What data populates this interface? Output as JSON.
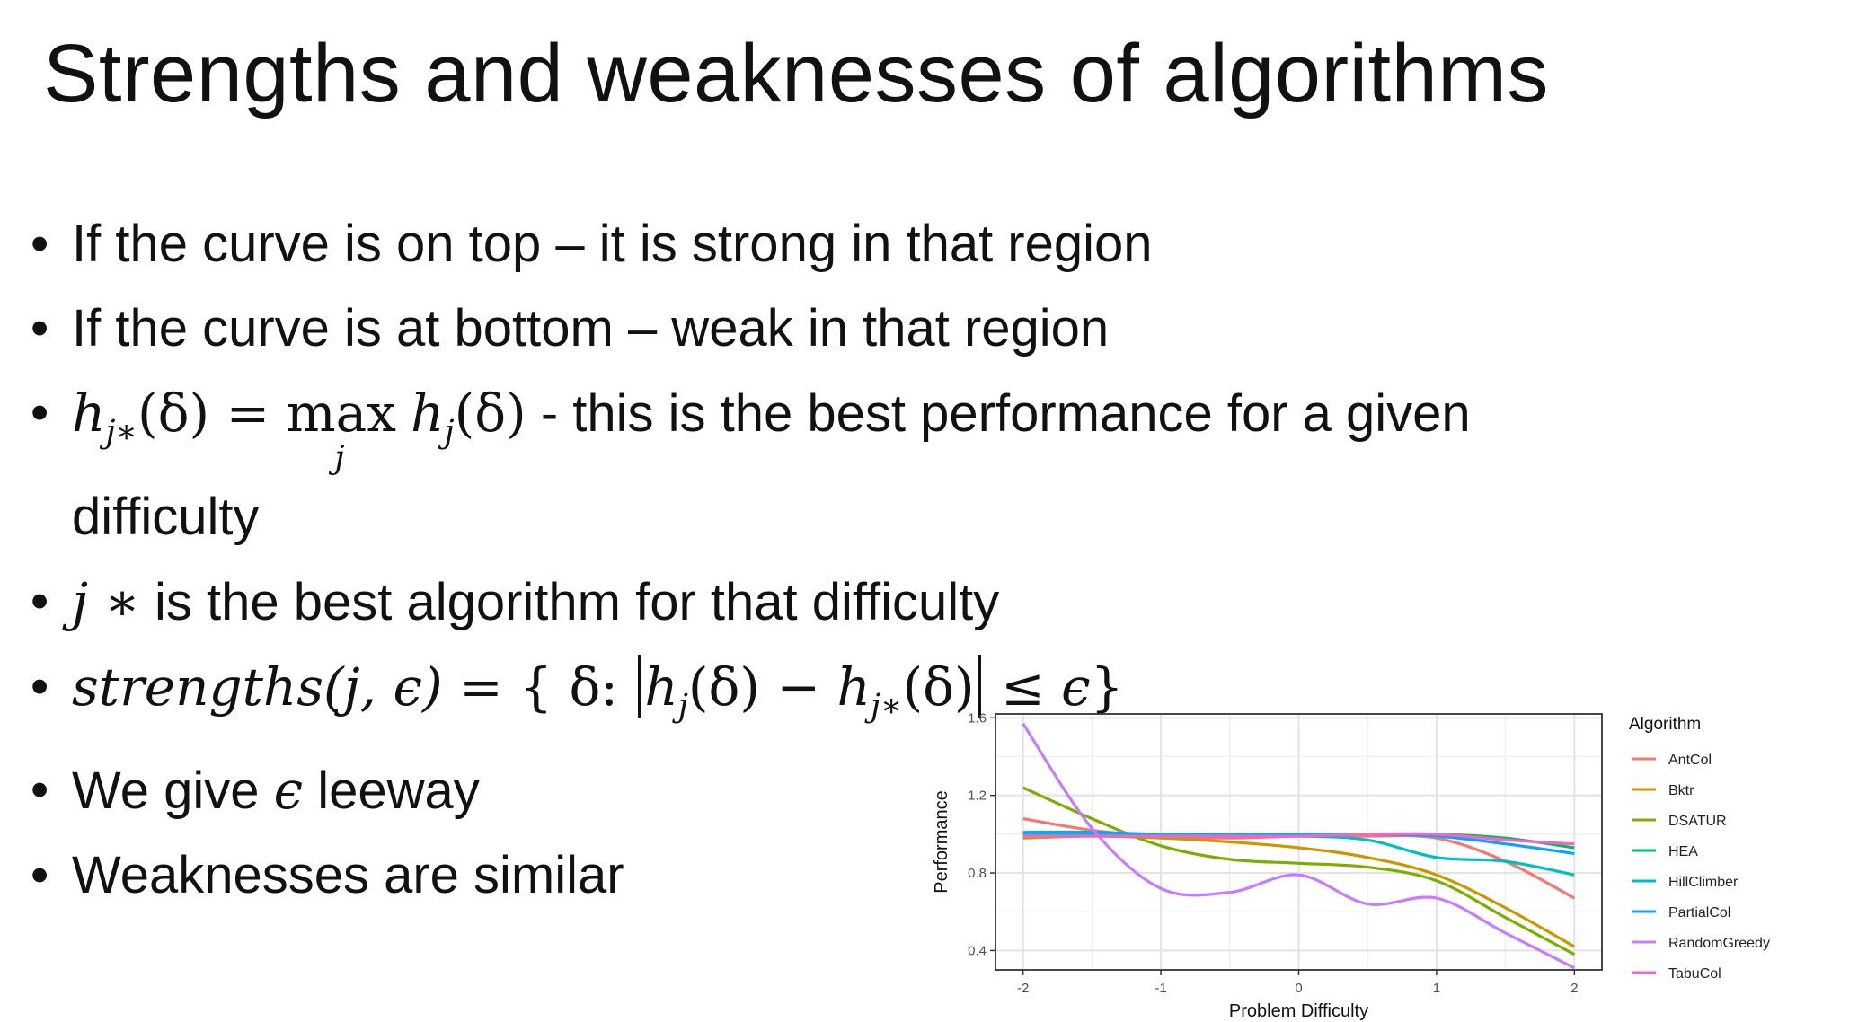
{
  "slide": {
    "title": "Strengths and weaknesses of algorithms",
    "bullets": [
      "If the curve is on top – it is strong in that region",
      "If the curve is at bottom – weak in that region",
      " - this is the best performance for a given",
      "difficulty",
      " is the best algorithm for that difficulty",
      "We give ",
      " leeway",
      "Weaknesses are similar"
    ],
    "math": {
      "h": "h",
      "jstar_sub": "j∗",
      "j_sub": "j",
      "delta_arg": "(δ)",
      "eq": " = ",
      "max": "max",
      "max_sub": "j",
      "jstar": "j ∗",
      "strengths": "strengths",
      "strengths_args": "(j, ϵ)",
      "set_open": "{ δ: ",
      "minus": " − ",
      "leq": " ≤ ",
      "epsilon": "ϵ",
      "set_close": "}"
    }
  },
  "chart_data": {
    "type": "line",
    "xlabel": "Problem Difficulty",
    "ylabel": "Performance",
    "xlim": [
      -2.2,
      2.2
    ],
    "ylim": [
      0.3,
      1.62
    ],
    "xticks": [
      -2,
      -1,
      0,
      1,
      2
    ],
    "yticks": [
      0.4,
      0.8,
      1.2,
      1.6
    ],
    "x_tick_labels": [
      "-2",
      "-1",
      "0",
      "1",
      "2"
    ],
    "y_tick_labels": [
      "0.4",
      "0.8",
      "1.2",
      "1.6"
    ],
    "grid": true,
    "legend_title": "Algorithm",
    "legend_position": "right",
    "x": [
      -2,
      -1.5,
      -1,
      -0.5,
      0,
      0.5,
      1,
      1.5,
      2
    ],
    "series": [
      {
        "name": "AntCol",
        "color": "#F8766D",
        "values": [
          1.08,
          1.02,
          0.99,
          0.98,
          0.99,
          0.99,
          0.98,
          0.86,
          0.67
        ]
      },
      {
        "name": "Bktr",
        "color": "#CD9600",
        "values": [
          0.98,
          0.99,
          0.98,
          0.96,
          0.93,
          0.88,
          0.79,
          0.62,
          0.42
        ]
      },
      {
        "name": "DSATUR",
        "color": "#7CAE00",
        "values": [
          1.24,
          1.08,
          0.94,
          0.87,
          0.85,
          0.83,
          0.76,
          0.57,
          0.38
        ]
      },
      {
        "name": "HEA",
        "color": "#00BE67",
        "values": [
          1.0,
          1.0,
          1.0,
          1.0,
          1.0,
          1.0,
          1.0,
          0.98,
          0.93
        ]
      },
      {
        "name": "HillClimber",
        "color": "#00BFC4",
        "values": [
          1.0,
          1.0,
          0.99,
          0.99,
          0.99,
          0.97,
          0.88,
          0.86,
          0.79
        ]
      },
      {
        "name": "PartialCol",
        "color": "#00A9FF",
        "values": [
          1.01,
          1.01,
          1.0,
          1.0,
          1.0,
          1.0,
          0.99,
          0.95,
          0.9
        ]
      },
      {
        "name": "RandomGreedy",
        "color": "#C77CFF",
        "values": [
          1.57,
          1.03,
          0.72,
          0.7,
          0.79,
          0.64,
          0.67,
          0.49,
          0.31
        ]
      },
      {
        "name": "TabuCol",
        "color": "#FF61C3",
        "values": [
          0.99,
          0.99,
          0.99,
          0.99,
          0.99,
          1.0,
          1.0,
          0.97,
          0.95
        ]
      }
    ]
  }
}
